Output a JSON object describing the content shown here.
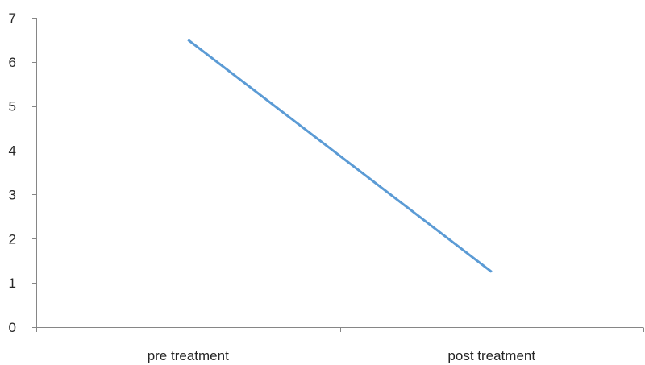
{
  "chart_data": {
    "type": "line",
    "title": "",
    "xlabel": "",
    "ylabel": "",
    "categories": [
      "pre treatment",
      "post treatment"
    ],
    "series": [
      {
        "values": [
          6.5,
          1.25
        ],
        "color": "#5B9BD5"
      }
    ],
    "ylim": [
      0,
      7
    ],
    "yticks": [
      0,
      1,
      2,
      3,
      4,
      5,
      6,
      7
    ],
    "grid": false,
    "legend": "none"
  }
}
